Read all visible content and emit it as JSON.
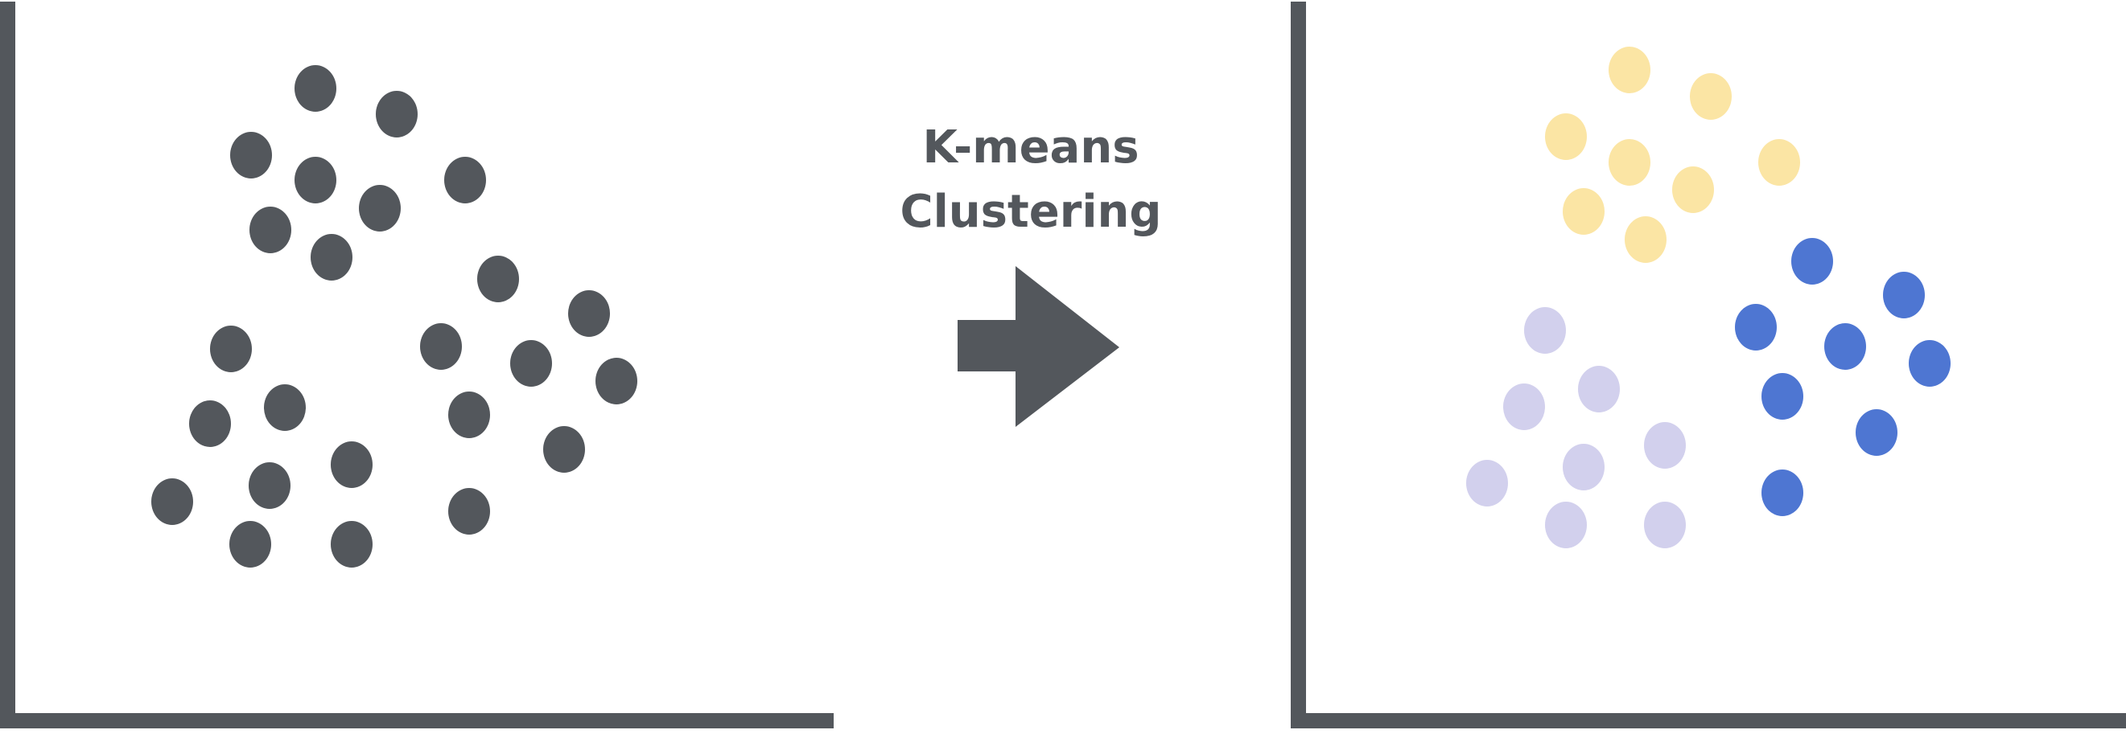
{
  "colors": {
    "axis": "#53575c",
    "unclustered": "#53575c",
    "arrow": "#53575c",
    "label": "#53575c",
    "cluster_yellow": "#fbe5a4",
    "cluster_lavender": "#d2d0ed",
    "cluster_blue": "#4e76d2"
  },
  "label": {
    "line1": "K-means",
    "line2": "Clustering"
  },
  "icons": {
    "arrow": "right-arrow-icon"
  }
}
